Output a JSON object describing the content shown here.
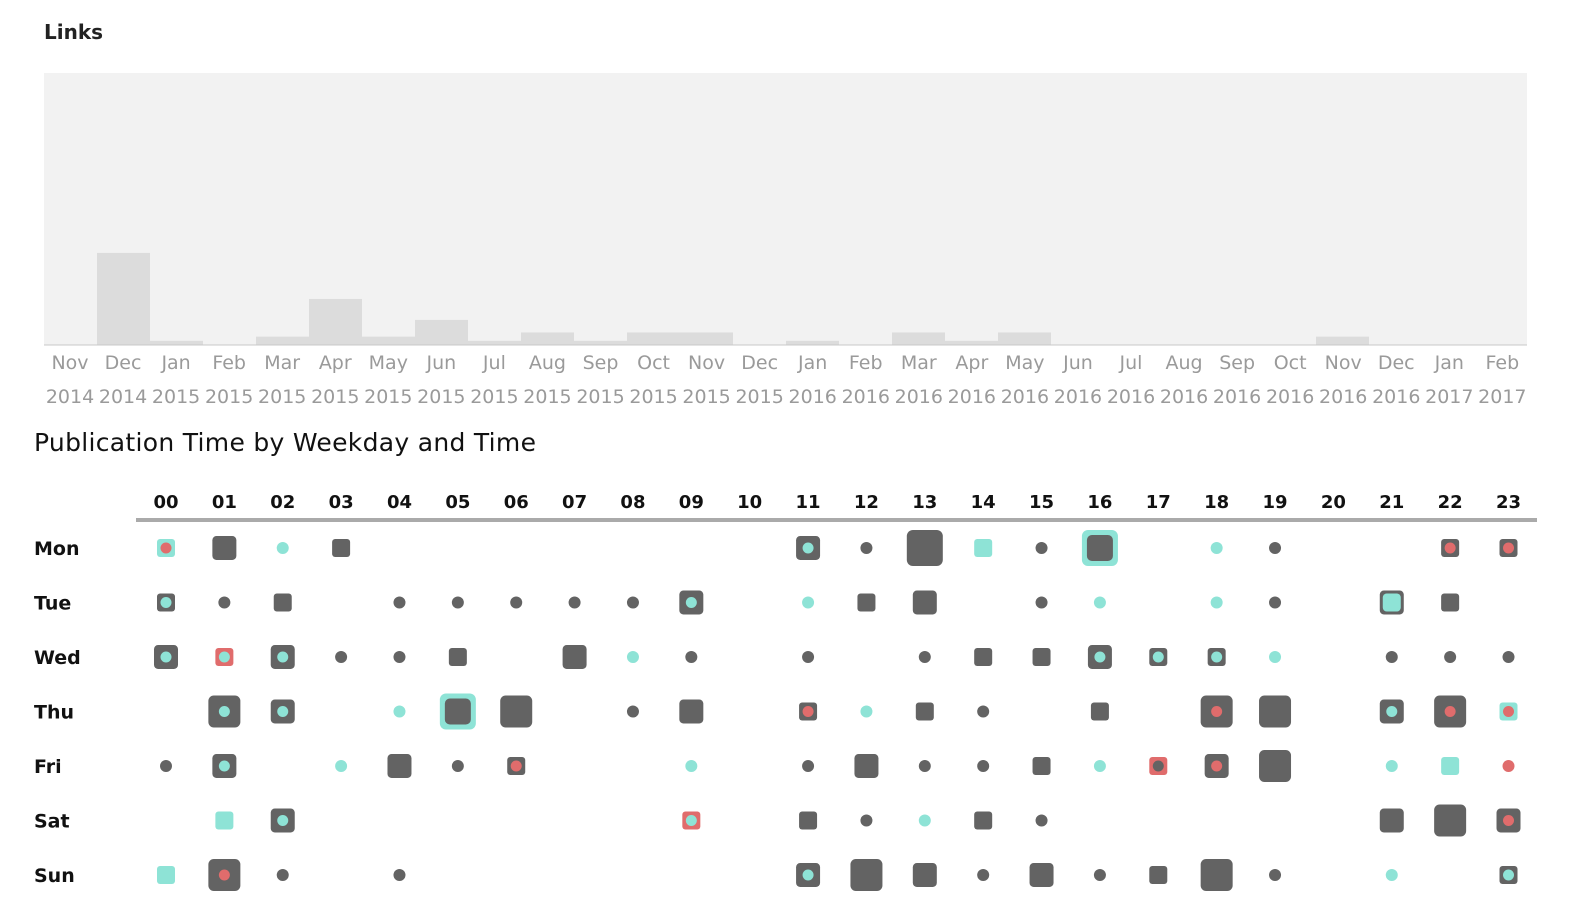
{
  "chart_data": [
    {
      "type": "bar",
      "title": "Links",
      "grid": false,
      "categories": [
        [
          "Nov",
          "2014"
        ],
        [
          "Dec",
          "2014"
        ],
        [
          "Jan",
          "2015"
        ],
        [
          "Feb",
          "2015"
        ],
        [
          "Mar",
          "2015"
        ],
        [
          "Apr",
          "2015"
        ],
        [
          "May",
          "2015"
        ],
        [
          "Jun",
          "2015"
        ],
        [
          "Jul",
          "2015"
        ],
        [
          "Aug",
          "2015"
        ],
        [
          "Sep",
          "2015"
        ],
        [
          "Oct",
          "2015"
        ],
        [
          "Nov",
          "2015"
        ],
        [
          "Dec",
          "2015"
        ],
        [
          "Jan",
          "2016"
        ],
        [
          "Feb",
          "2016"
        ],
        [
          "Mar",
          "2016"
        ],
        [
          "Apr",
          "2016"
        ],
        [
          "May",
          "2016"
        ],
        [
          "Jun",
          "2016"
        ],
        [
          "Jul",
          "2016"
        ],
        [
          "Aug",
          "2016"
        ],
        [
          "Sep",
          "2016"
        ],
        [
          "Oct",
          "2016"
        ],
        [
          "Nov",
          "2016"
        ],
        [
          "Dec",
          "2016"
        ],
        [
          "Jan",
          "2017"
        ],
        [
          "Feb",
          "2017"
        ]
      ],
      "values": [
        0,
        22,
        1,
        0,
        2,
        11,
        2,
        6,
        1,
        3,
        1,
        3,
        3,
        0,
        1,
        0,
        3,
        1,
        3,
        0,
        0,
        0,
        0,
        0,
        2,
        0,
        0,
        0
      ],
      "ylim": [
        0,
        65
      ],
      "colors": {
        "plot_bg": "#f2f2f2",
        "bar": "#dcdcdc",
        "axis": "#c8c8c8"
      }
    },
    {
      "type": "heatmap",
      "title": "Publication Time by Weekday and Time",
      "hours": [
        "00",
        "01",
        "02",
        "03",
        "04",
        "05",
        "06",
        "07",
        "08",
        "09",
        "10",
        "11",
        "12",
        "13",
        "14",
        "15",
        "16",
        "17",
        "18",
        "19",
        "20",
        "21",
        "22",
        "23"
      ],
      "days": [
        "Mon",
        "Tue",
        "Wed",
        "Thu",
        "Fri",
        "Sat",
        "Sun"
      ],
      "encoding_note_hidden": "",
      "cells_size_scale": "count (0-4); square size grows with count; inner dot = accent marker",
      "colors": {
        "dark": "#636363",
        "teal": "#8ee3d6",
        "red": "#e06c6c",
        "axis": "#aaaaaa"
      },
      "cells": [
        {
          "d": 0,
          "h": 0,
          "s": 1,
          "c": "teal",
          "i": "red"
        },
        {
          "d": 0,
          "h": 1,
          "s": 2,
          "c": "dark"
        },
        {
          "d": 0,
          "h": 2,
          "s": 0,
          "c": "teal"
        },
        {
          "d": 0,
          "h": 3,
          "s": 1,
          "c": "dark"
        },
        {
          "d": 0,
          "h": 11,
          "s": 2,
          "c": "dark",
          "i": "teal"
        },
        {
          "d": 0,
          "h": 12,
          "s": 0,
          "c": "dark"
        },
        {
          "d": 0,
          "h": 13,
          "s": 4,
          "c": "dark"
        },
        {
          "d": 0,
          "h": 14,
          "s": 1,
          "c": "teal"
        },
        {
          "d": 0,
          "h": 15,
          "s": 0,
          "c": "dark"
        },
        {
          "d": 0,
          "h": 16,
          "s": 4,
          "c": "teal",
          "i": "darksq"
        },
        {
          "d": 0,
          "h": 18,
          "s": 0,
          "c": "teal"
        },
        {
          "d": 0,
          "h": 19,
          "s": 0,
          "c": "dark"
        },
        {
          "d": 0,
          "h": 22,
          "s": 1,
          "c": "dark",
          "i": "red"
        },
        {
          "d": 0,
          "h": 23,
          "s": 1,
          "c": "dark",
          "i": "red"
        },
        {
          "d": 1,
          "h": 0,
          "s": 1,
          "c": "dark",
          "i": "teal"
        },
        {
          "d": 1,
          "h": 1,
          "s": 0,
          "c": "dark"
        },
        {
          "d": 1,
          "h": 2,
          "s": 1,
          "c": "dark"
        },
        {
          "d": 1,
          "h": 4,
          "s": 0,
          "c": "dark"
        },
        {
          "d": 1,
          "h": 5,
          "s": 0,
          "c": "dark"
        },
        {
          "d": 1,
          "h": 6,
          "s": 0,
          "c": "dark"
        },
        {
          "d": 1,
          "h": 7,
          "s": 0,
          "c": "dark"
        },
        {
          "d": 1,
          "h": 8,
          "s": 0,
          "c": "dark"
        },
        {
          "d": 1,
          "h": 9,
          "s": 2,
          "c": "dark",
          "i": "teal"
        },
        {
          "d": 1,
          "h": 11,
          "s": 0,
          "c": "teal"
        },
        {
          "d": 1,
          "h": 12,
          "s": 1,
          "c": "dark"
        },
        {
          "d": 1,
          "h": 13,
          "s": 2,
          "c": "dark"
        },
        {
          "d": 1,
          "h": 15,
          "s": 0,
          "c": "dark"
        },
        {
          "d": 1,
          "h": 16,
          "s": 0,
          "c": "teal"
        },
        {
          "d": 1,
          "h": 18,
          "s": 0,
          "c": "teal"
        },
        {
          "d": 1,
          "h": 19,
          "s": 0,
          "c": "dark"
        },
        {
          "d": 1,
          "h": 21,
          "s": 2,
          "c": "dark",
          "i": "tealsq"
        },
        {
          "d": 1,
          "h": 22,
          "s": 1,
          "c": "dark"
        },
        {
          "d": 2,
          "h": 0,
          "s": 2,
          "c": "dark",
          "i": "teal"
        },
        {
          "d": 2,
          "h": 1,
          "s": 1,
          "c": "red",
          "i": "teal"
        },
        {
          "d": 2,
          "h": 2,
          "s": 2,
          "c": "dark",
          "i": "teal"
        },
        {
          "d": 2,
          "h": 3,
          "s": 0,
          "c": "dark"
        },
        {
          "d": 2,
          "h": 4,
          "s": 0,
          "c": "dark"
        },
        {
          "d": 2,
          "h": 5,
          "s": 1,
          "c": "dark"
        },
        {
          "d": 2,
          "h": 7,
          "s": 2,
          "c": "dark"
        },
        {
          "d": 2,
          "h": 8,
          "s": 0,
          "c": "teal"
        },
        {
          "d": 2,
          "h": 9,
          "s": 0,
          "c": "dark"
        },
        {
          "d": 2,
          "h": 11,
          "s": 0,
          "c": "dark"
        },
        {
          "d": 2,
          "h": 13,
          "s": 0,
          "c": "dark"
        },
        {
          "d": 2,
          "h": 14,
          "s": 1,
          "c": "dark"
        },
        {
          "d": 2,
          "h": 15,
          "s": 1,
          "c": "dark"
        },
        {
          "d": 2,
          "h": 16,
          "s": 2,
          "c": "dark",
          "i": "teal"
        },
        {
          "d": 2,
          "h": 17,
          "s": 1,
          "c": "dark",
          "i": "teal"
        },
        {
          "d": 2,
          "h": 18,
          "s": 1,
          "c": "dark",
          "i": "teal"
        },
        {
          "d": 2,
          "h": 19,
          "s": 0,
          "c": "teal"
        },
        {
          "d": 2,
          "h": 21,
          "s": 0,
          "c": "dark"
        },
        {
          "d": 2,
          "h": 22,
          "s": 0,
          "c": "dark"
        },
        {
          "d": 2,
          "h": 23,
          "s": 0,
          "c": "dark"
        },
        {
          "d": 3,
          "h": 1,
          "s": 3,
          "c": "dark",
          "i": "teal"
        },
        {
          "d": 3,
          "h": 2,
          "s": 2,
          "c": "dark",
          "i": "teal"
        },
        {
          "d": 3,
          "h": 4,
          "s": 0,
          "c": "teal"
        },
        {
          "d": 3,
          "h": 5,
          "s": 4,
          "c": "teal",
          "i": "darksq"
        },
        {
          "d": 3,
          "h": 6,
          "s": 3,
          "c": "dark"
        },
        {
          "d": 3,
          "h": 8,
          "s": 0,
          "c": "dark"
        },
        {
          "d": 3,
          "h": 9,
          "s": 2,
          "c": "dark"
        },
        {
          "d": 3,
          "h": 11,
          "s": 1,
          "c": "dark",
          "i": "red"
        },
        {
          "d": 3,
          "h": 12,
          "s": 0,
          "c": "teal"
        },
        {
          "d": 3,
          "h": 13,
          "s": 1,
          "c": "dark"
        },
        {
          "d": 3,
          "h": 14,
          "s": 0,
          "c": "dark"
        },
        {
          "d": 3,
          "h": 16,
          "s": 1,
          "c": "dark"
        },
        {
          "d": 3,
          "h": 18,
          "s": 3,
          "c": "dark",
          "i": "red"
        },
        {
          "d": 3,
          "h": 19,
          "s": 3,
          "c": "dark"
        },
        {
          "d": 3,
          "h": 21,
          "s": 2,
          "c": "dark",
          "i": "teal"
        },
        {
          "d": 3,
          "h": 22,
          "s": 3,
          "c": "dark",
          "i": "red"
        },
        {
          "d": 3,
          "h": 23,
          "s": 1,
          "c": "teal",
          "i": "red"
        },
        {
          "d": 4,
          "h": 0,
          "s": 0,
          "c": "dark"
        },
        {
          "d": 4,
          "h": 1,
          "s": 2,
          "c": "dark",
          "i": "teal"
        },
        {
          "d": 4,
          "h": 3,
          "s": 0,
          "c": "teal"
        },
        {
          "d": 4,
          "h": 4,
          "s": 2,
          "c": "dark"
        },
        {
          "d": 4,
          "h": 5,
          "s": 0,
          "c": "dark"
        },
        {
          "d": 4,
          "h": 6,
          "s": 1,
          "c": "dark",
          "i": "red"
        },
        {
          "d": 4,
          "h": 9,
          "s": 0,
          "c": "teal"
        },
        {
          "d": 4,
          "h": 11,
          "s": 0,
          "c": "dark"
        },
        {
          "d": 4,
          "h": 12,
          "s": 2,
          "c": "dark"
        },
        {
          "d": 4,
          "h": 13,
          "s": 0,
          "c": "dark"
        },
        {
          "d": 4,
          "h": 14,
          "s": 0,
          "c": "dark"
        },
        {
          "d": 4,
          "h": 15,
          "s": 1,
          "c": "dark"
        },
        {
          "d": 4,
          "h": 16,
          "s": 0,
          "c": "teal"
        },
        {
          "d": 4,
          "h": 17,
          "s": 1,
          "c": "red",
          "i": "darkdot"
        },
        {
          "d": 4,
          "h": 18,
          "s": 2,
          "c": "dark",
          "i": "red"
        },
        {
          "d": 4,
          "h": 19,
          "s": 3,
          "c": "dark"
        },
        {
          "d": 4,
          "h": 21,
          "s": 0,
          "c": "teal"
        },
        {
          "d": 4,
          "h": 22,
          "s": 1,
          "c": "teal"
        },
        {
          "d": 4,
          "h": 23,
          "s": 0,
          "c": "red"
        },
        {
          "d": 5,
          "h": 1,
          "s": 1,
          "c": "teal"
        },
        {
          "d": 5,
          "h": 2,
          "s": 2,
          "c": "dark",
          "i": "teal"
        },
        {
          "d": 5,
          "h": 9,
          "s": 1,
          "c": "red",
          "i": "teal"
        },
        {
          "d": 5,
          "h": 11,
          "s": 1,
          "c": "dark"
        },
        {
          "d": 5,
          "h": 12,
          "s": 0,
          "c": "dark"
        },
        {
          "d": 5,
          "h": 13,
          "s": 0,
          "c": "teal"
        },
        {
          "d": 5,
          "h": 14,
          "s": 1,
          "c": "dark"
        },
        {
          "d": 5,
          "h": 15,
          "s": 0,
          "c": "dark"
        },
        {
          "d": 5,
          "h": 21,
          "s": 2,
          "c": "dark"
        },
        {
          "d": 5,
          "h": 22,
          "s": 3,
          "c": "dark"
        },
        {
          "d": 5,
          "h": 23,
          "s": 2,
          "c": "dark",
          "i": "red"
        },
        {
          "d": 6,
          "h": 0,
          "s": 1,
          "c": "teal"
        },
        {
          "d": 6,
          "h": 1,
          "s": 3,
          "c": "dark",
          "i": "red"
        },
        {
          "d": 6,
          "h": 2,
          "s": 0,
          "c": "dark"
        },
        {
          "d": 6,
          "h": 4,
          "s": 0,
          "c": "dark"
        },
        {
          "d": 6,
          "h": 11,
          "s": 2,
          "c": "dark",
          "i": "teal"
        },
        {
          "d": 6,
          "h": 12,
          "s": 3,
          "c": "dark"
        },
        {
          "d": 6,
          "h": 13,
          "s": 2,
          "c": "dark"
        },
        {
          "d": 6,
          "h": 14,
          "s": 0,
          "c": "dark"
        },
        {
          "d": 6,
          "h": 15,
          "s": 2,
          "c": "dark"
        },
        {
          "d": 6,
          "h": 16,
          "s": 0,
          "c": "dark"
        },
        {
          "d": 6,
          "h": 17,
          "s": 1,
          "c": "dark"
        },
        {
          "d": 6,
          "h": 18,
          "s": 3,
          "c": "dark"
        },
        {
          "d": 6,
          "h": 19,
          "s": 0,
          "c": "dark"
        },
        {
          "d": 6,
          "h": 21,
          "s": 0,
          "c": "teal"
        },
        {
          "d": 6,
          "h": 23,
          "s": 1,
          "c": "dark",
          "i": "teal"
        }
      ]
    }
  ]
}
